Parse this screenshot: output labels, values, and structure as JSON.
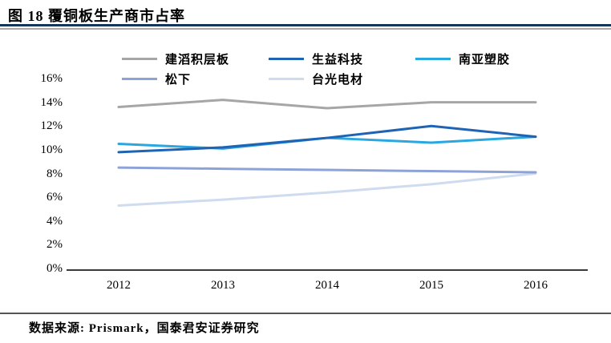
{
  "header": {
    "title": "图 18 覆铜板生产商市占率"
  },
  "footer": {
    "source": "数据来源: Prismark，国泰君安证券研究"
  },
  "colors": {
    "title_rule_dark": "#15355c",
    "title_rule_gray": "#a8a8a8",
    "axis_line": "#3a3a3a",
    "footer_rule": "#555555"
  },
  "chart_data": {
    "type": "line",
    "title": "覆铜板生产商市占率",
    "categories": [
      "2012",
      "2013",
      "2014",
      "2015",
      "2016"
    ],
    "series": [
      {
        "name": "建滔积层板",
        "color": "#a6a6a6",
        "values": [
          13.6,
          14.2,
          13.5,
          14.0,
          14.0
        ]
      },
      {
        "name": "生益科技",
        "color": "#1f64b4",
        "values": [
          9.8,
          10.2,
          11.0,
          12.0,
          11.1
        ]
      },
      {
        "name": "南亚塑胶",
        "color": "#2ba7e0",
        "values": [
          10.5,
          10.1,
          11.0,
          10.6,
          11.1
        ]
      },
      {
        "name": "松下",
        "color": "#8da3d8",
        "values": [
          8.5,
          8.4,
          8.3,
          8.2,
          8.1
        ]
      },
      {
        "name": "台光电材",
        "color": "#cfdcef",
        "values": [
          5.3,
          5.8,
          6.4,
          7.1,
          8.0
        ]
      }
    ],
    "xlabel": "",
    "ylabel": "",
    "ylim": [
      0,
      16
    ],
    "ytick_step": 2,
    "ytick_labels": [
      "0%",
      "2%",
      "4%",
      "6%",
      "8%",
      "10%",
      "12%",
      "14%",
      "16%"
    ],
    "grid": false,
    "legend_position": "top",
    "legend_rows": [
      3,
      2
    ]
  }
}
